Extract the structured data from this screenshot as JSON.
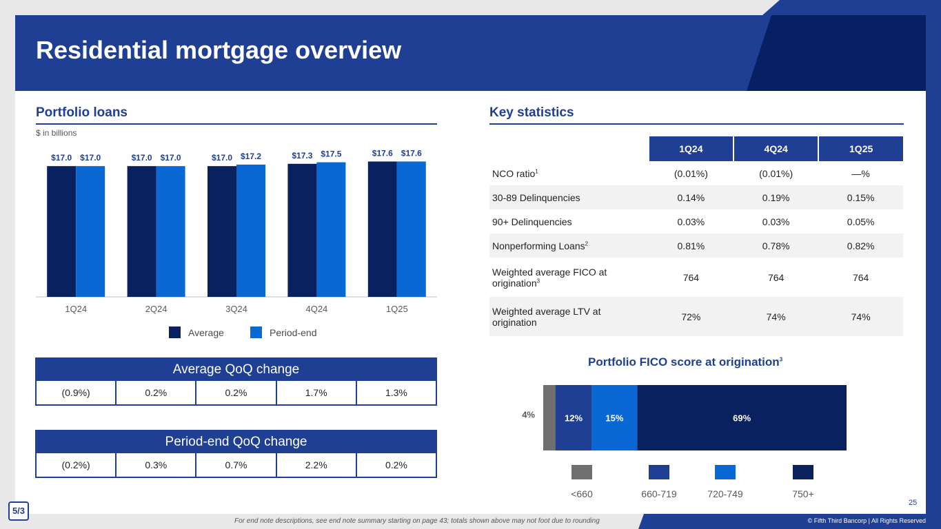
{
  "title": "Residential mortgage overview",
  "portfolio": {
    "title": "Portfolio loans",
    "unit": "$ in billions",
    "legend": {
      "average": "Average",
      "period_end": "Period-end"
    }
  },
  "colors": {
    "brand": "#1f3f94",
    "dark": "#062063",
    "navy": "#0a2160",
    "bright": "#0a68d4",
    "gray": "#6f6f6f"
  },
  "chart_data": [
    {
      "type": "bar",
      "title": "Portfolio loans",
      "ylabel": "$ in billions",
      "categories": [
        "1Q24",
        "2Q24",
        "3Q24",
        "4Q24",
        "1Q25"
      ],
      "series": [
        {
          "name": "Average",
          "values": [
            17.0,
            17.0,
            17.0,
            17.3,
            17.6
          ],
          "labels": [
            "$17.0",
            "$17.0",
            "$17.0",
            "$17.3",
            "$17.6"
          ]
        },
        {
          "name": "Period-end",
          "values": [
            17.0,
            17.0,
            17.2,
            17.5,
            17.6
          ],
          "labels": [
            "$17.0",
            "$17.0",
            "$17.2",
            "$17.5",
            "$17.6"
          ]
        }
      ],
      "ylim": [
        0,
        18
      ],
      "legend": "bottom"
    },
    {
      "type": "bar",
      "stacked": true,
      "orientation": "horizontal",
      "title": "Portfolio FICO score at origination",
      "title_sup": "3",
      "categories": [
        "<660",
        "660-719",
        "720-749",
        "750+"
      ],
      "values": [
        4,
        12,
        15,
        69
      ],
      "labels": [
        "4%",
        "12%",
        "15%",
        "69%"
      ],
      "legend": "bottom"
    }
  ],
  "avg_qoq": {
    "title": "Average QoQ change",
    "values": [
      "(0.9%)",
      "0.2%",
      "0.2%",
      "1.7%",
      "1.3%"
    ]
  },
  "pe_qoq": {
    "title": "Period-end QoQ change",
    "values": [
      "(0.2%)",
      "0.3%",
      "0.7%",
      "2.2%",
      "0.2%"
    ]
  },
  "stats": {
    "title": "Key statistics",
    "headers": [
      "1Q24",
      "4Q24",
      "1Q25"
    ],
    "rows": [
      {
        "label": "NCO ratio",
        "sup": "1",
        "values": [
          "(0.01%)",
          "(0.01%)",
          "—%"
        ]
      },
      {
        "label": "30-89 Delinquencies",
        "sup": "",
        "values": [
          "0.14%",
          "0.19%",
          "0.15%"
        ]
      },
      {
        "label": "90+ Delinquencies",
        "sup": "",
        "values": [
          "0.03%",
          "0.03%",
          "0.05%"
        ]
      },
      {
        "label": "Nonperforming Loans",
        "sup": "2",
        "values": [
          "0.81%",
          "0.78%",
          "0.82%"
        ]
      },
      {
        "label": "Weighted average FICO at origination",
        "sup": "3",
        "values": [
          "764",
          "764",
          "764"
        ]
      },
      {
        "label": "Weighted average LTV at origination",
        "sup": "",
        "values": [
          "72%",
          "74%",
          "74%"
        ]
      }
    ]
  },
  "footer": {
    "note": "For end note descriptions, see end note summary starting on page 43; totals shown above may not foot due to rounding",
    "copyright": "© Fifth Third Bancorp | All Rights Reserved",
    "page": "25",
    "logo": "5/3"
  }
}
